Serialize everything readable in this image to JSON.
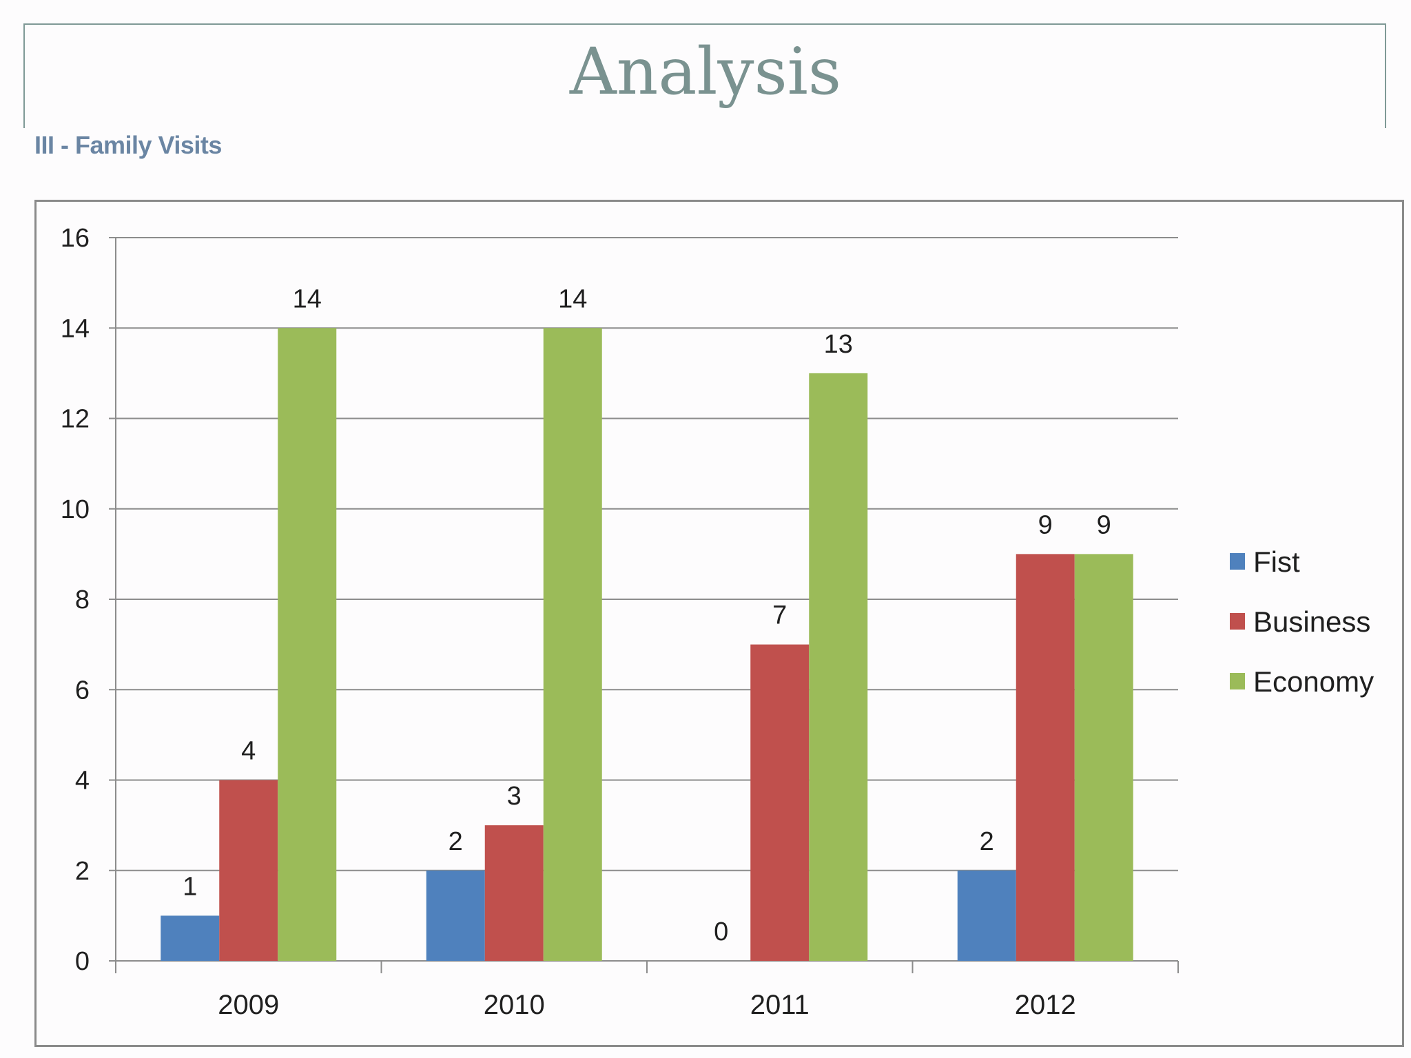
{
  "slide": {
    "title": "Analysis",
    "subtitle": "III - Family  Visits"
  },
  "colors": {
    "title": "#7a9290",
    "subtitle": "#6a85a3",
    "gridline": "#8c8c8c",
    "axis_text": "#1f1f1f"
  },
  "chart_data": {
    "type": "bar",
    "title": "",
    "xlabel": "",
    "ylabel": "",
    "categories": [
      "2009",
      "2010",
      "2011",
      "2012"
    ],
    "series": [
      {
        "name": "Fist",
        "color": "#4f81bd",
        "values": [
          1,
          2,
          0,
          2
        ]
      },
      {
        "name": "Business",
        "color": "#c0504d",
        "values": [
          4,
          3,
          7,
          9
        ]
      },
      {
        "name": "Economy",
        "color": "#9bbb59",
        "values": [
          14,
          14,
          13,
          9
        ]
      }
    ],
    "ylim": [
      0,
      16
    ],
    "yticks": [
      "0",
      "2",
      "4",
      "6",
      "8",
      "10",
      "12",
      "14",
      "16"
    ],
    "grid": true,
    "legend_position": "right",
    "data_labels": true
  }
}
